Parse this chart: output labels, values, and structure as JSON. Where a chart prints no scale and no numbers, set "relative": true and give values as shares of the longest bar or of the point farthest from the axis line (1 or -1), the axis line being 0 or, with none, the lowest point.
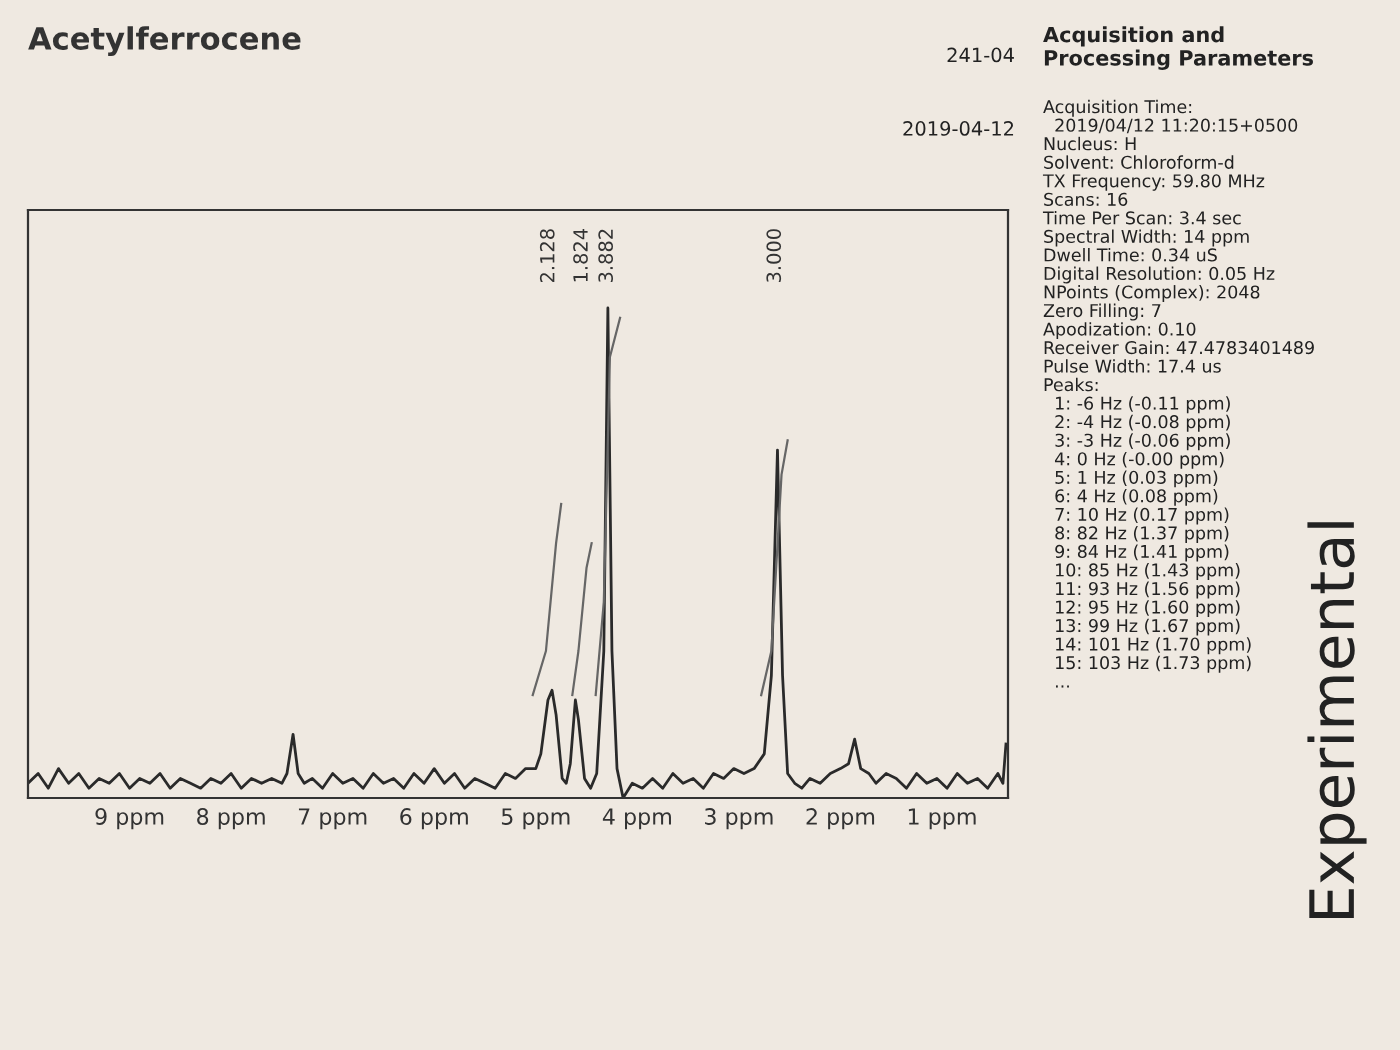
{
  "chart_data": {
    "type": "line",
    "title": "Acetylferrocene",
    "relative": true,
    "tick_labels": "x",
    "grid": false,
    "legend": false,
    "marker": "none",
    "line_style": "solid",
    "xlim": [
      10.0,
      0.35
    ],
    "xticks": [
      {
        "value": 9,
        "label": "9 ppm"
      },
      {
        "value": 8,
        "label": "8 ppm"
      },
      {
        "value": 7,
        "label": "7 ppm"
      },
      {
        "value": 6,
        "label": "6 ppm"
      },
      {
        "value": 5,
        "label": "5 ppm"
      },
      {
        "value": 4,
        "label": "4 ppm"
      },
      {
        "value": 3,
        "label": "3 ppm"
      },
      {
        "value": 2,
        "label": "2 ppm"
      },
      {
        "value": 1,
        "label": "1 ppm"
      }
    ],
    "series": [
      {
        "color": "#2a2a2a",
        "x": [
          10.0,
          9.9,
          9.8,
          9.7,
          9.6,
          9.5,
          9.4,
          9.3,
          9.2,
          9.1,
          9.0,
          8.9,
          8.8,
          8.7,
          8.6,
          8.5,
          8.4,
          8.3,
          8.2,
          8.1,
          8.0,
          7.9,
          7.8,
          7.7,
          7.6,
          7.5,
          7.45,
          7.39,
          7.34,
          7.28,
          7.2,
          7.1,
          7.0,
          6.9,
          6.8,
          6.7,
          6.6,
          6.5,
          6.4,
          6.3,
          6.2,
          6.1,
          6.0,
          5.9,
          5.8,
          5.7,
          5.6,
          5.5,
          5.4,
          5.3,
          5.2,
          5.1,
          5.0,
          4.95,
          4.88,
          4.84,
          4.8,
          4.74,
          4.7,
          4.66,
          4.61,
          4.58,
          4.52,
          4.46,
          4.4,
          4.33,
          4.29,
          4.25,
          4.2,
          4.14,
          4.05,
          3.95,
          3.85,
          3.75,
          3.65,
          3.55,
          3.45,
          3.35,
          3.25,
          3.15,
          3.05,
          2.95,
          2.85,
          2.75,
          2.68,
          2.62,
          2.57,
          2.52,
          2.45,
          2.38,
          2.3,
          2.2,
          2.1,
          2.0,
          1.92,
          1.86,
          1.8,
          1.72,
          1.65,
          1.55,
          1.45,
          1.35,
          1.25,
          1.15,
          1.05,
          0.95,
          0.85,
          0.75,
          0.65,
          0.55,
          0.45,
          0.4,
          0.37
        ],
        "values": [
          0.03,
          0.05,
          0.02,
          0.06,
          0.03,
          0.05,
          0.02,
          0.04,
          0.03,
          0.05,
          0.02,
          0.04,
          0.03,
          0.05,
          0.02,
          0.04,
          0.03,
          0.02,
          0.04,
          0.03,
          0.05,
          0.02,
          0.04,
          0.03,
          0.04,
          0.03,
          0.05,
          0.13,
          0.05,
          0.03,
          0.04,
          0.02,
          0.05,
          0.03,
          0.04,
          0.02,
          0.05,
          0.03,
          0.04,
          0.02,
          0.05,
          0.03,
          0.06,
          0.03,
          0.05,
          0.02,
          0.04,
          0.03,
          0.02,
          0.05,
          0.04,
          0.06,
          0.06,
          0.09,
          0.2,
          0.22,
          0.17,
          0.04,
          0.03,
          0.07,
          0.2,
          0.16,
          0.04,
          0.02,
          0.05,
          0.3,
          1.0,
          0.3,
          0.06,
          0.0,
          0.03,
          0.02,
          0.04,
          0.02,
          0.05,
          0.03,
          0.04,
          0.02,
          0.05,
          0.04,
          0.06,
          0.05,
          0.06,
          0.09,
          0.25,
          0.71,
          0.25,
          0.05,
          0.03,
          0.02,
          0.04,
          0.03,
          0.05,
          0.06,
          0.07,
          0.12,
          0.06,
          0.05,
          0.03,
          0.05,
          0.04,
          0.02,
          0.05,
          0.03,
          0.04,
          0.02,
          0.05,
          0.03,
          0.04,
          0.02,
          0.05,
          0.03,
          0.11
        ]
      },
      {
        "color": "#666666",
        "x": [
          5.03,
          4.9,
          4.8,
          4.75
        ],
        "values": [
          0.21,
          0.3,
          0.52,
          0.6
        ]
      },
      {
        "color": "#666666",
        "x": [
          4.64,
          4.58,
          4.5,
          4.45
        ],
        "values": [
          0.21,
          0.3,
          0.47,
          0.52
        ]
      },
      {
        "color": "#666666",
        "x": [
          4.41,
          4.33,
          4.27,
          4.17
        ],
        "values": [
          0.21,
          0.4,
          0.9,
          0.98
        ]
      },
      {
        "color": "#666666",
        "x": [
          2.78,
          2.68,
          2.58,
          2.52
        ],
        "values": [
          0.21,
          0.3,
          0.66,
          0.73
        ]
      }
    ],
    "annotations": [
      "241-04",
      "2019-04-12",
      "Acquisition and\nProcessing Parameters",
      "Acquisition Time:\n  2019/04/12 11:20:15+0500\nNucleus: H\nSolvent: Chloroform-d\nTX Frequency: 59.80 MHz\nScans: 16\nTime Per Scan: 3.4 sec\nSpectral Width: 14 ppm\nDwell Time: 0.34 uS\nDigital Resolution: 0.05 Hz\nNPoints (Complex): 2048\nZero Filling: 7\nApodization: 0.10\nReceiver Gain: 47.4783401489\nPulse Width: 17.4 us\nPeaks:\n  1: -6 Hz (-0.11 ppm)\n  2: -4 Hz (-0.08 ppm)\n  3: -3 Hz (-0.06 ppm)\n  4: 0 Hz (-0.00 ppm)\n  5: 1 Hz (0.03 ppm)\n  6: 4 Hz (0.08 ppm)\n  7: 10 Hz (0.17 ppm)\n  8: 82 Hz (1.37 ppm)\n  9: 84 Hz (1.41 ppm)\n  10: 85 Hz (1.43 ppm)\n  11: 93 Hz (1.56 ppm)\n  12: 95 Hz (1.60 ppm)\n  13: 99 Hz (1.67 ppm)\n  14: 101 Hz (1.70 ppm)\n  15: 103 Hz (1.73 ppm)\n  ...",
      "Experimental",
      "2.128",
      "1.824",
      "3.882",
      "3.000"
    ]
  }
}
